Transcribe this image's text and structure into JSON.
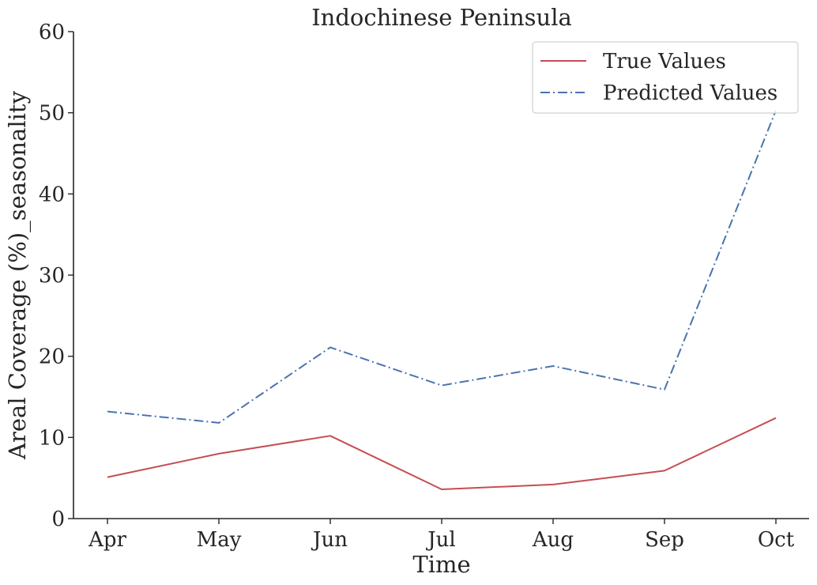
{
  "chart_data": {
    "type": "line",
    "title": "Indochinese Peninsula",
    "xlabel": "Time",
    "ylabel": "Areal Coverage (%)_seasonality",
    "categories": [
      "Apr",
      "May",
      "Jun",
      "Jul",
      "Aug",
      "Sep",
      "Oct"
    ],
    "ylim": [
      0,
      60
    ],
    "yticks": [
      "0",
      "10",
      "20",
      "30",
      "40",
      "50",
      "60"
    ],
    "grid": false,
    "legend_position": "top-right",
    "series": [
      {
        "name": "True Values",
        "color": "#c44e52",
        "linestyle": "solid",
        "values": [
          5.1,
          8.0,
          10.2,
          3.6,
          4.2,
          5.9,
          12.4
        ]
      },
      {
        "name": "Predicted Values",
        "color": "#4c72b0",
        "linestyle": "dashdot",
        "values": [
          13.2,
          11.8,
          21.1,
          16.4,
          18.8,
          15.9,
          50.3
        ]
      }
    ]
  }
}
